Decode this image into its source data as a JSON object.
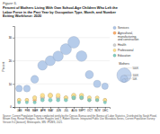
{
  "chart_data": {
    "type": "scatter",
    "figure_label": "Figure 5.",
    "title": "Percent of Mothers Living With Own School-Age Children Who Left the\nLabor Force in the Past Year by Occupation Type, Month, and Number\nExiting Workforce: 2020",
    "ylabel": "Percent",
    "categories": [
      "JAN",
      "FEB",
      "MAR",
      "APR",
      "MAY",
      "JUN",
      "JUL",
      "AUG",
      "SEPT",
      "OCT",
      "NOV",
      "DEC"
    ],
    "ylim": [
      0,
      35
    ],
    "yticks": [
      0,
      10,
      20,
      30
    ],
    "grid": true,
    "series": [
      {
        "name": "Services",
        "color": "#aec6e8",
        "values": [
          8,
          8,
          12,
          18,
          20,
          22,
          25,
          28,
          22,
          14,
          10,
          9
        ],
        "sizes": [
          180,
          190,
          250,
          380,
          420,
          450,
          520,
          580,
          480,
          280,
          220,
          180
        ]
      },
      {
        "name": "Agricultural,\nmanufacturing,\nand construction",
        "color": "#fdae6b",
        "values": [
          3,
          3,
          3,
          4,
          5,
          4,
          4,
          4,
          4,
          3,
          3,
          3
        ],
        "sizes": [
          40,
          40,
          50,
          60,
          70,
          55,
          50,
          60,
          55,
          45,
          40,
          38
        ]
      },
      {
        "name": "Health",
        "color": "#d0d0d0",
        "values": [
          3,
          3,
          4,
          4,
          5,
          4,
          4,
          5,
          5,
          4,
          4,
          3
        ],
        "sizes": [
          50,
          48,
          60,
          65,
          80,
          62,
          60,
          72,
          68,
          55,
          52,
          48
        ]
      },
      {
        "name": "Professional",
        "color": "#fee08b",
        "values": [
          3,
          3,
          4,
          5,
          5,
          5,
          4,
          5,
          5,
          4,
          4,
          3
        ],
        "sizes": [
          55,
          52,
          65,
          80,
          88,
          78,
          68,
          82,
          75,
          60,
          57,
          52
        ]
      },
      {
        "name": "Education",
        "color": "#80cdc1",
        "values": [
          2,
          2,
          2,
          3,
          3,
          3,
          3,
          4,
          4,
          3,
          3,
          2
        ],
        "sizes": [
          38,
          36,
          42,
          55,
          60,
          52,
          50,
          65,
          62,
          48,
          44,
          38
        ]
      }
    ],
    "size_legend": {
      "title": "Mothers",
      "color": "#aec6e8",
      "labels": [
        "50K",
        "100K",
        "500K"
      ]
    },
    "source": "Source: Current Population Survey conducted jointly by the Census Bureau and the Bureau of Labor Statistics. Distributed by Sarah Flood, Miriam King, Renae Rodgers, Steven Ruggles and J. Robert Warren. Integrated Public Use Microdata Series, Current Population Survey: Version 9.0 [dataset]. Minneapolis, MN: IPUMS, 2021."
  }
}
